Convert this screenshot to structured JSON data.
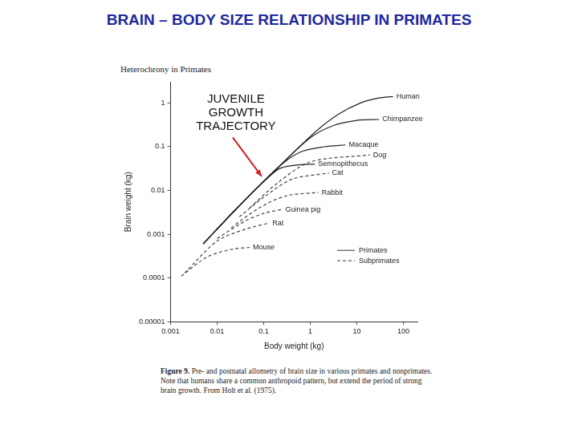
{
  "header": "BRAIN – BODY SIZE RELATIONSHIP IN PRIMATES",
  "chart_data": {
    "type": "line",
    "title": "Heterochrony in Primates",
    "x_label": "Body weight (kg)",
    "y_label": "Brain weight (kg)",
    "log": true,
    "xlim": [
      0.001,
      200
    ],
    "xticks": [
      0.001,
      0.01,
      0.1,
      1,
      10,
      100
    ],
    "ylim": [
      1e-05,
      3
    ],
    "yticks": [
      1e-05,
      0.0001,
      0.001,
      0.01,
      0.1,
      1
    ],
    "grid": false,
    "legend": "lower right",
    "legend_items": [
      {
        "name": "Primates",
        "line_style": "solid"
      },
      {
        "name": "Subprimates",
        "line_style": "dashed"
      }
    ],
    "annotation": {
      "text": [
        "JUVENILE",
        "GROWTH",
        "TRAJECTORY"
      ],
      "x": 0.09,
      "y": 0.021
    },
    "caption": {
      "label": "Figure 9.",
      "text": "Pre- and postnatal allometry of brain size in various primates and nonprimates. Note that humans share a common anthropoid pattern, but extend the period of strong brain growth. From Holt et al. (1975)."
    },
    "series": [
      {
        "name": "Human",
        "group": "Primates",
        "color": "#222222",
        "line_style": "solid",
        "x": [
          0.005,
          0.03,
          0.2,
          1.3,
          4,
          12,
          30,
          60
        ],
        "values": [
          0.0006,
          0.0045,
          0.033,
          0.22,
          0.55,
          1.0,
          1.3,
          1.4
        ]
      },
      {
        "name": "Chimpanzee",
        "group": "Primates",
        "color": "#222222",
        "line_style": "solid",
        "x": [
          0.005,
          0.03,
          0.2,
          1,
          3,
          10,
          30
        ],
        "values": [
          0.0006,
          0.0045,
          0.033,
          0.16,
          0.3,
          0.4,
          0.42
        ]
      },
      {
        "name": "Macaque",
        "group": "Primates",
        "color": "#222222",
        "line_style": "solid",
        "x": [
          0.005,
          0.03,
          0.2,
          0.6,
          2,
          5.7
        ],
        "values": [
          0.0006,
          0.0045,
          0.033,
          0.075,
          0.1,
          0.11
        ]
      },
      {
        "name": "Semnopithecus",
        "group": "Primates",
        "color": "#222222",
        "line_style": "solid",
        "x": [
          0.005,
          0.03,
          0.2,
          0.5,
          1.25
        ],
        "values": [
          0.0006,
          0.0045,
          0.03,
          0.038,
          0.04
        ]
      },
      {
        "name": "Dog",
        "group": "Subprimates",
        "color": "#444444",
        "line_style": "dashed",
        "x": [
          0.05,
          0.2,
          1,
          19
        ],
        "values": [
          0.004,
          0.015,
          0.045,
          0.065
        ]
      },
      {
        "name": "Cat",
        "group": "Subprimates",
        "color": "#444444",
        "line_style": "dashed",
        "x": [
          0.03,
          0.1,
          0.4,
          2.5
        ],
        "values": [
          0.0025,
          0.007,
          0.018,
          0.025
        ]
      },
      {
        "name": "Rabbit",
        "group": "Subprimates",
        "color": "#444444",
        "line_style": "dashed",
        "x": [
          0.02,
          0.08,
          0.3,
          1.5
        ],
        "values": [
          0.0014,
          0.004,
          0.0075,
          0.009
        ]
      },
      {
        "name": "Guinea pig",
        "group": "Subprimates",
        "color": "#444444",
        "line_style": "dashed",
        "x": [
          0.01,
          0.04,
          0.1,
          0.25
        ],
        "values": [
          0.0008,
          0.002,
          0.003,
          0.0037
        ]
      },
      {
        "name": "Rat",
        "group": "Subprimates",
        "color": "#444444",
        "line_style": "dashed",
        "x": [
          0.002,
          0.01,
          0.04,
          0.13
        ],
        "values": [
          0.00013,
          0.0007,
          0.0013,
          0.0018
        ]
      },
      {
        "name": "Mouse",
        "group": "Subprimates",
        "color": "#444444",
        "line_style": "dashed",
        "x": [
          0.0017,
          0.006,
          0.02,
          0.05
        ],
        "values": [
          0.00011,
          0.0003,
          0.00045,
          0.0005
        ]
      }
    ]
  }
}
